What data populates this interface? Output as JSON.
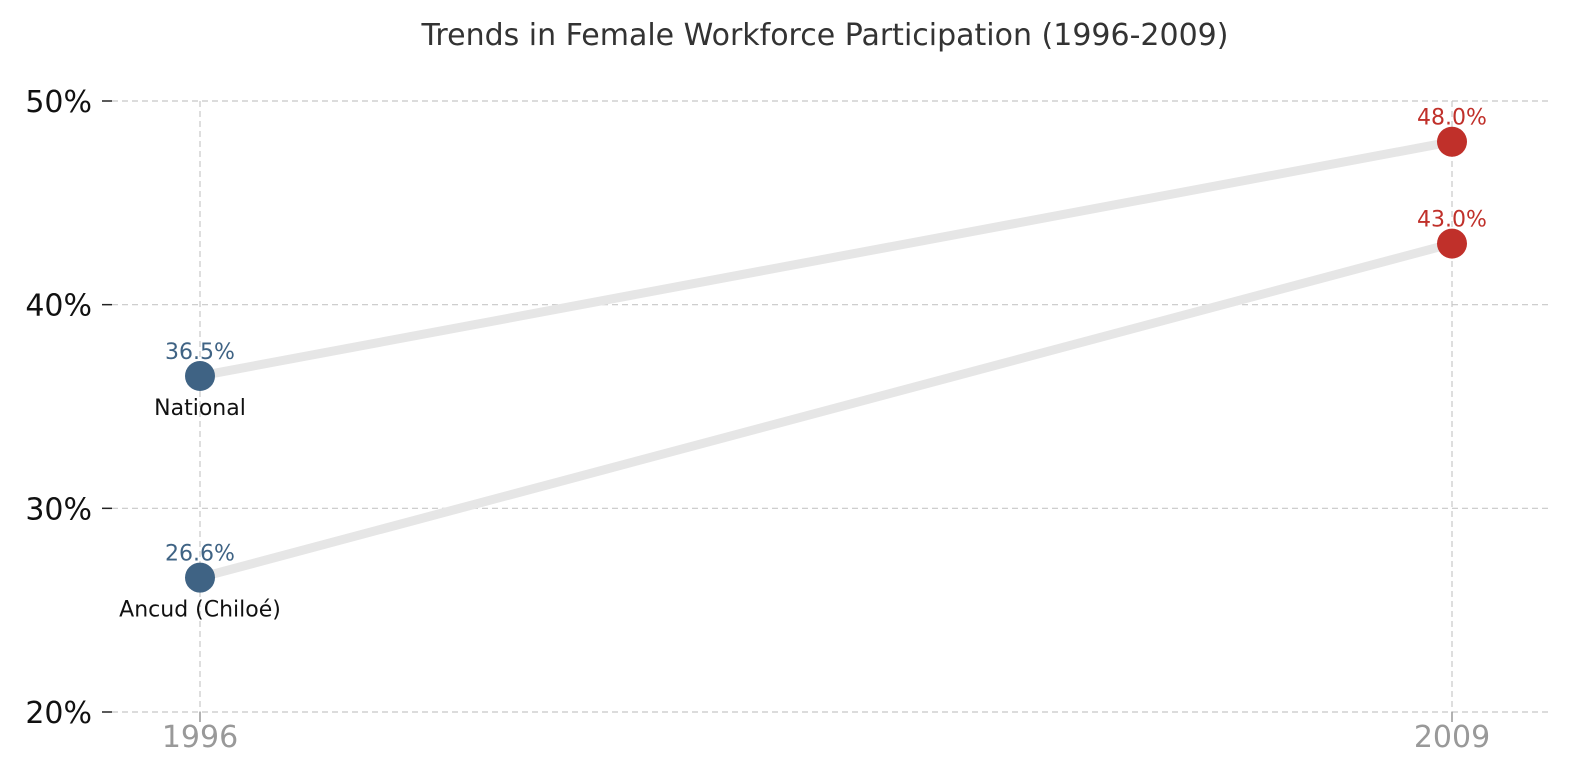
{
  "chart_data": {
    "type": "line",
    "title": "Trends in Female Workforce Participation (1996-2009)",
    "xlabel": "",
    "ylabel": "",
    "x": [
      1996,
      2009
    ],
    "x_tick_labels": [
      "1996",
      "2009"
    ],
    "y_tick_labels": [
      "50%",
      "40%",
      "30%",
      "20%"
    ],
    "ylim": [
      20,
      50
    ],
    "y_ticks": [
      20,
      30,
      40,
      50
    ],
    "grid": true,
    "series": [
      {
        "name": "National",
        "values": [
          36.5,
          48.0
        ],
        "value_labels": [
          "36.5%",
          "48.0%"
        ]
      },
      {
        "name": "Ancud (Chiloé)",
        "values": [
          26.6,
          43.0
        ],
        "value_labels": [
          "26.6%",
          "43.0%"
        ]
      }
    ],
    "colors": {
      "start_point": "#3f6384",
      "end_point": "#c0302a",
      "connector": "#e6e6e6"
    }
  }
}
